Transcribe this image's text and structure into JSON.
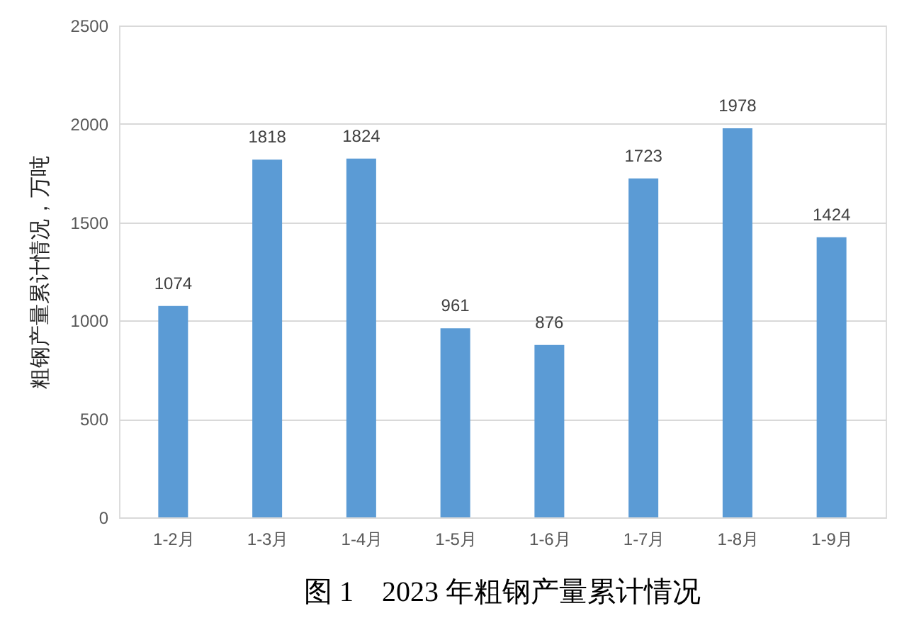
{
  "chart_data": {
    "type": "bar",
    "title": "图 1　2023 年粗钢产量累计情况",
    "ylabel": "粗钢产量累计情况，万吨",
    "categories": [
      "1-2月",
      "1-3月",
      "1-4月",
      "1-5月",
      "1-6月",
      "1-7月",
      "1-8月",
      "1-9月"
    ],
    "values": [
      1074,
      1818,
      1824,
      961,
      876,
      1723,
      1978,
      1424
    ],
    "color": "#5b9bd5",
    "ylim": [
      0,
      2500
    ],
    "yticks": [
      0,
      500,
      1000,
      1500,
      2000,
      2500
    ],
    "grid": "y",
    "data_labels": true
  }
}
